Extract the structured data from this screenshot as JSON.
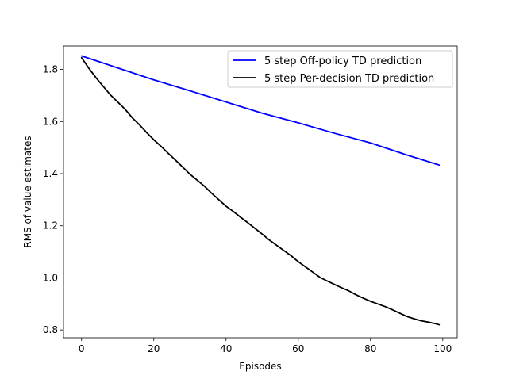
{
  "chart_data": {
    "type": "line",
    "title": "",
    "xlabel": "Episodes",
    "ylabel": "RMS of value estimates",
    "xlim": [
      -5,
      104
    ],
    "ylim": [
      0.77,
      1.89
    ],
    "xticks": [
      0,
      20,
      40,
      60,
      80,
      100
    ],
    "yticks": [
      0.8,
      1.0,
      1.2,
      1.4,
      1.6,
      1.8
    ],
    "grid": false,
    "legend_position": "top-right",
    "series": [
      {
        "name": "5 step Off-policy TD prediction",
        "color": "#0000ff",
        "x": [
          0,
          10,
          20,
          30,
          40,
          50,
          60,
          70,
          80,
          90,
          99
        ],
        "values": [
          1.852,
          1.806,
          1.76,
          1.718,
          1.675,
          1.632,
          1.595,
          1.555,
          1.518,
          1.472,
          1.433
        ]
      },
      {
        "name": "5 step Per-decision TD prediction",
        "color": "#000000",
        "x": [
          0,
          2,
          4,
          6,
          8,
          10,
          12,
          14,
          16,
          18,
          20,
          22,
          24,
          26,
          28,
          30,
          32,
          34,
          36,
          38,
          40,
          42,
          44,
          46,
          48,
          50,
          52,
          54,
          56,
          58,
          60,
          62,
          64,
          66,
          68,
          70,
          72,
          74,
          76,
          78,
          80,
          82,
          84,
          86,
          88,
          90,
          92,
          94,
          96,
          98,
          99
        ],
        "values": [
          1.845,
          1.805,
          1.768,
          1.735,
          1.702,
          1.675,
          1.648,
          1.615,
          1.588,
          1.558,
          1.53,
          1.505,
          1.478,
          1.452,
          1.425,
          1.398,
          1.375,
          1.352,
          1.325,
          1.3,
          1.275,
          1.255,
          1.233,
          1.212,
          1.19,
          1.168,
          1.145,
          1.125,
          1.105,
          1.085,
          1.062,
          1.042,
          1.022,
          1.002,
          0.988,
          0.975,
          0.962,
          0.95,
          0.935,
          0.922,
          0.91,
          0.9,
          0.89,
          0.878,
          0.865,
          0.852,
          0.843,
          0.835,
          0.83,
          0.824,
          0.82
        ]
      }
    ]
  }
}
